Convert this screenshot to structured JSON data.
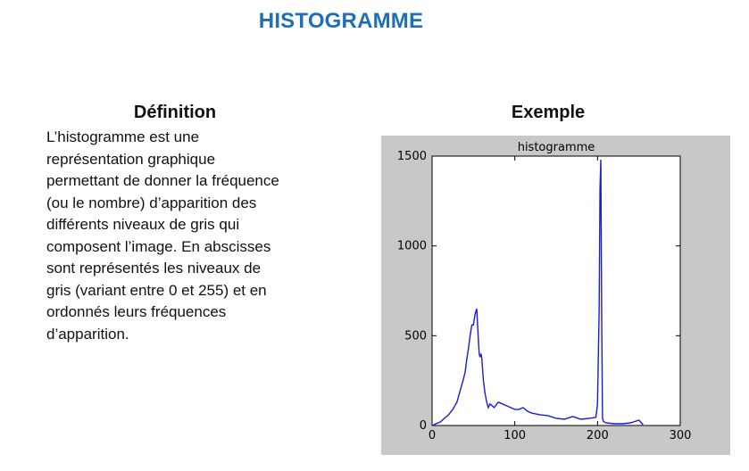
{
  "page": {
    "title": "HISTOGRAMME"
  },
  "definition": {
    "heading": "Définition",
    "lines": [
      "L’histogramme est une",
      "représentation graphique",
      "permettant de donner la fréquence",
      "(ou le nombre) d’apparition des",
      "différents niveaux de gris qui",
      "composent l’image. En abscisses",
      "sont représentés les niveaux de",
      "gris (variant entre 0 et 255) et en",
      "ordonnés leurs fréquences",
      "d’apparition."
    ]
  },
  "example": {
    "heading": "Exemple"
  },
  "colors": {
    "title_blue": "#1f6fb8",
    "chart_background": "#c8c8c8",
    "plot_background": "#ffffff",
    "series_line": "#1a1adb"
  },
  "chart_data": {
    "type": "line",
    "title": "histogramme",
    "xlabel": "",
    "ylabel": "",
    "xlim": [
      0,
      300
    ],
    "ylim": [
      0,
      1500
    ],
    "xticks": [
      0,
      100,
      200,
      300
    ],
    "yticks": [
      0,
      500,
      1000,
      1500
    ],
    "grid": false,
    "series": [
      {
        "x": [
          0,
          5,
          10,
          15,
          20,
          25,
          30,
          35,
          38,
          40,
          42,
          44,
          46,
          48,
          50,
          52,
          54,
          55,
          56,
          57,
          58,
          59,
          60,
          62,
          64,
          66,
          68,
          70,
          75,
          80,
          85,
          90,
          95,
          100,
          105,
          110,
          115,
          120,
          130,
          140,
          150,
          160,
          170,
          180,
          190,
          198,
          200,
          202,
          203,
          204,
          205,
          206,
          207,
          208,
          210,
          220,
          230,
          240,
          250,
          255
        ],
        "y": [
          0,
          10,
          20,
          40,
          60,
          90,
          130,
          210,
          260,
          300,
          370,
          430,
          500,
          560,
          560,
          620,
          650,
          560,
          470,
          400,
          380,
          400,
          380,
          250,
          180,
          130,
          100,
          120,
          100,
          130,
          120,
          110,
          100,
          90,
          90,
          100,
          80,
          70,
          60,
          55,
          40,
          35,
          50,
          35,
          40,
          45,
          120,
          660,
          1320,
          1480,
          600,
          40,
          25,
          20,
          15,
          10,
          10,
          15,
          30,
          5
        ]
      }
    ]
  }
}
